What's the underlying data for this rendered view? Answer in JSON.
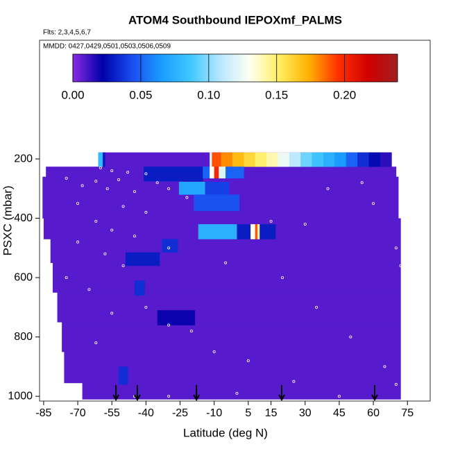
{
  "chart_data": {
    "type": "heatmap",
    "title": "ATOM4 Southbound IEPOXmf_PALMS",
    "flights": "Flts: 2,3,4,5,6,7",
    "dates": "MMDD: 0427,0429,0501,0503,0506,0509",
    "xlabel": "Latitude (deg N)",
    "ylabel": "PSXC (mbar)",
    "xlim": [
      -86.8,
      85
    ],
    "ylim": [
      1016,
      -200
    ],
    "xticks": [
      -85,
      -70,
      -55,
      -40,
      -25,
      -10,
      5,
      15,
      30,
      45,
      60,
      75
    ],
    "yticks": [
      200,
      400,
      600,
      800,
      1000
    ],
    "colorbar": {
      "lim": [
        0,
        0.239
      ],
      "ticks": [
        {
          "value": 0,
          "label": "0.00"
        },
        0.05,
        {
          "value": 0.1,
          "label": "0.10"
        },
        0.15,
        {
          "value": 0.2,
          "label": "0.20"
        }
      ],
      "colors": [
        "#8a2be2",
        "#0000a8",
        "#1a4cf0",
        "#1a9cff",
        "#40c8ff",
        "#b8e8ff",
        "#fffff0",
        "#ffee60",
        "#ffb000",
        "#ff3000",
        "#d00000",
        "#a02020"
      ]
    },
    "cells": [
      {
        "lat": [
          -61,
          68
        ],
        "pressure": [
          178,
          226
        ],
        "value": 0.008
      },
      {
        "lat": [
          -84,
          70
        ],
        "pressure": [
          226,
          260
        ],
        "value": 0.008
      },
      {
        "lat": [
          -85.5,
          71
        ],
        "pressure": [
          260,
          400
        ],
        "value": 0.008
      },
      {
        "lat": [
          -85,
          72
        ],
        "pressure": [
          400,
          470
        ],
        "value": 0.008
      },
      {
        "lat": [
          -82,
          72
        ],
        "pressure": [
          470,
          550
        ],
        "value": 0.008
      },
      {
        "lat": [
          -81,
          72
        ],
        "pressure": [
          550,
          650
        ],
        "value": 0.008
      },
      {
        "lat": [
          -79,
          72
        ],
        "pressure": [
          650,
          750
        ],
        "value": 0.008
      },
      {
        "lat": [
          -77,
          72
        ],
        "pressure": [
          750,
          850
        ],
        "value": 0.008
      },
      {
        "lat": [
          -76,
          72
        ],
        "pressure": [
          850,
          955
        ],
        "value": 0.008
      },
      {
        "lat": [
          -68,
          72
        ],
        "pressure": [
          955,
          1010
        ],
        "value": 0.008
      },
      {
        "lat": [
          -61,
          -59
        ],
        "pressure": [
          178,
          226
        ],
        "value": 0.08
      },
      {
        "lat": [
          -59,
          -58
        ],
        "pressure": [
          178,
          226
        ],
        "value": 0.03
      },
      {
        "lat": [
          -12,
          -11
        ],
        "pressure": [
          178,
          226
        ],
        "value": 0.12
      },
      {
        "lat": [
          -11,
          -7
        ],
        "pressure": [
          178,
          226
        ],
        "value": 0.19
      },
      {
        "lat": [
          -7,
          -2
        ],
        "pressure": [
          178,
          226
        ],
        "value": 0.18
      },
      {
        "lat": [
          -2,
          3
        ],
        "pressure": [
          178,
          226
        ],
        "value": 0.17
      },
      {
        "lat": [
          3,
          8
        ],
        "pressure": [
          178,
          226
        ],
        "value": 0.16
      },
      {
        "lat": [
          8,
          13
        ],
        "pressure": [
          178,
          226
        ],
        "value": 0.15
      },
      {
        "lat": [
          13,
          18
        ],
        "pressure": [
          178,
          226
        ],
        "value": 0.14
      },
      {
        "lat": [
          18,
          23
        ],
        "pressure": [
          178,
          226
        ],
        "value": 0.125
      },
      {
        "lat": [
          23,
          28
        ],
        "pressure": [
          178,
          226
        ],
        "value": 0.11
      },
      {
        "lat": [
          28,
          33
        ],
        "pressure": [
          178,
          226
        ],
        "value": 0.095
      },
      {
        "lat": [
          33,
          38
        ],
        "pressure": [
          178,
          226
        ],
        "value": 0.085
      },
      {
        "lat": [
          38,
          43
        ],
        "pressure": [
          178,
          226
        ],
        "value": 0.075
      },
      {
        "lat": [
          43,
          48
        ],
        "pressure": [
          178,
          226
        ],
        "value": 0.065
      },
      {
        "lat": [
          48,
          53
        ],
        "pressure": [
          178,
          226
        ],
        "value": 0.05
      },
      {
        "lat": [
          53,
          58
        ],
        "pressure": [
          178,
          226
        ],
        "value": 0.035
      },
      {
        "lat": [
          58,
          63
        ],
        "pressure": [
          178,
          226
        ],
        "value": 0.025
      },
      {
        "lat": [
          63,
          68
        ],
        "pressure": [
          178,
          226
        ],
        "value": 0.015
      },
      {
        "lat": [
          -41,
          -15
        ],
        "pressure": [
          226,
          275
        ],
        "value": 0.03
      },
      {
        "lat": [
          -15,
          -12
        ],
        "pressure": [
          226,
          265
        ],
        "value": 0.05
      },
      {
        "lat": [
          -12,
          -10
        ],
        "pressure": [
          226,
          265
        ],
        "value": 0.13
      },
      {
        "lat": [
          -10,
          -8
        ],
        "pressure": [
          226,
          265
        ],
        "value": 0.2
      },
      {
        "lat": [
          -8,
          -5
        ],
        "pressure": [
          226,
          265
        ],
        "value": 0.12
      },
      {
        "lat": [
          -5,
          3
        ],
        "pressure": [
          226,
          265
        ],
        "value": 0.05
      },
      {
        "lat": [
          -25.5,
          -14
        ],
        "pressure": [
          277,
          320
        ],
        "value": 0.07
      },
      {
        "lat": [
          -14,
          -3.5
        ],
        "pressure": [
          277,
          320
        ],
        "value": 0.04
      },
      {
        "lat": [
          -19,
          1
        ],
        "pressure": [
          320,
          375
        ],
        "value": 0.045
      },
      {
        "lat": [
          -17,
          0
        ],
        "pressure": [
          420,
          470
        ],
        "value": 0.075
      },
      {
        "lat": [
          0,
          6
        ],
        "pressure": [
          420,
          470
        ],
        "value": 0.03
      },
      {
        "lat": [
          6,
          8
        ],
        "pressure": [
          420,
          470
        ],
        "value": 0.13
      },
      {
        "lat": [
          8,
          9
        ],
        "pressure": [
          420,
          470
        ],
        "value": 0.19
      },
      {
        "lat": [
          9,
          10
        ],
        "pressure": [
          420,
          470
        ],
        "value": 0.14
      },
      {
        "lat": [
          10,
          17
        ],
        "pressure": [
          420,
          470
        ],
        "value": 0.03
      },
      {
        "lat": [
          -33,
          -26
        ],
        "pressure": [
          470,
          515
        ],
        "value": 0.035
      },
      {
        "lat": [
          -49,
          -34
        ],
        "pressure": [
          515,
          560
        ],
        "value": 0.03
      },
      {
        "lat": [
          -45,
          -40.5
        ],
        "pressure": [
          610,
          660
        ],
        "value": 0.035
      },
      {
        "lat": [
          -35,
          -18.5
        ],
        "pressure": [
          710,
          760
        ],
        "value": 0.02
      },
      {
        "lat": [
          -52,
          -48
        ],
        "pressure": [
          900,
          960
        ],
        "value": 0.035
      }
    ],
    "points": {
      "lat": [
        -60,
        -55,
        -48,
        -40,
        -75,
        -62,
        -52,
        -35,
        -68,
        -57,
        -45,
        -30,
        -22,
        -70,
        -50,
        -40,
        -62,
        -55,
        -45,
        -70,
        -30,
        -58,
        -50,
        -75,
        -65,
        -40,
        -55,
        -30,
        -20,
        -62,
        -10,
        5,
        20,
        35,
        50,
        65,
        40,
        55,
        60,
        70,
        25,
        -45,
        -30,
        0,
        45,
        70,
        72,
        15,
        -5,
        30
      ],
      "pressure": [
        230,
        240,
        245,
        250,
        265,
        275,
        270,
        280,
        290,
        300,
        310,
        300,
        330,
        350,
        360,
        380,
        410,
        440,
        460,
        480,
        500,
        520,
        560,
        600,
        640,
        700,
        720,
        760,
        780,
        820,
        850,
        880,
        600,
        700,
        800,
        900,
        300,
        280,
        350,
        500,
        950,
        1000,
        1000,
        990,
        1000,
        960,
        560,
        410,
        550,
        420
      ]
    },
    "arrow_lat": [
      -53.2,
      -43.8,
      -17.8,
      19.7,
      60.6
    ]
  }
}
